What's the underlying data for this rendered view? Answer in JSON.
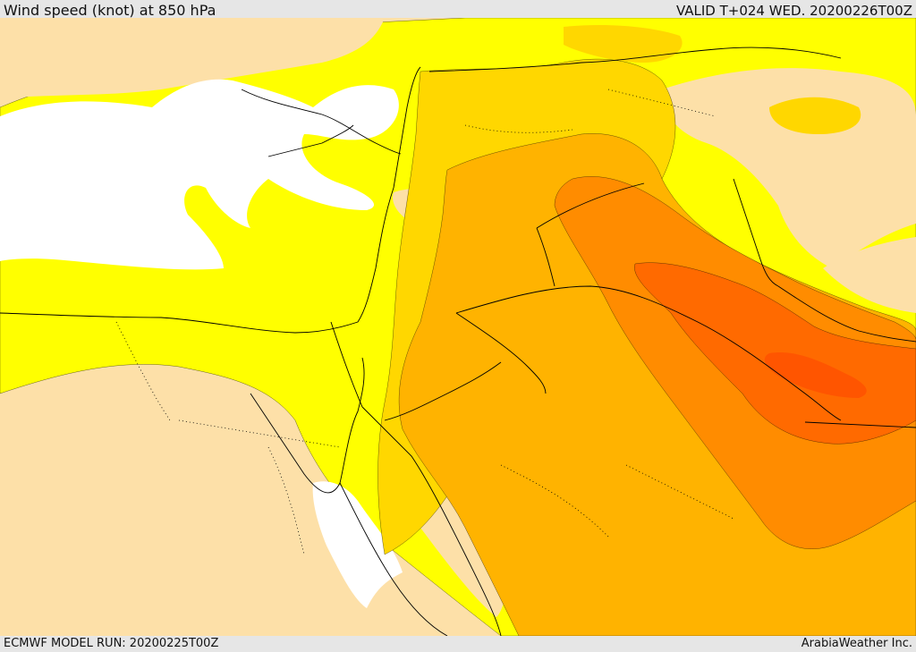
{
  "header": {
    "title": "Wind speed (knot) at 850 hPa",
    "valid": "VALID T+024 WED. 20200226T00Z"
  },
  "footer": {
    "model_run": "ECMWF MODEL RUN: 20200225T00Z",
    "credit": "ArabiaWeather Inc."
  },
  "colors": {
    "calm": "#ffffff",
    "low": "#fde0a8",
    "moderate": "#ffff00",
    "fresh": "#ffd700",
    "strong": "#ffb300",
    "very_strong": "#ff8c00",
    "gale": "#ff6a00",
    "border": "#000000"
  }
}
